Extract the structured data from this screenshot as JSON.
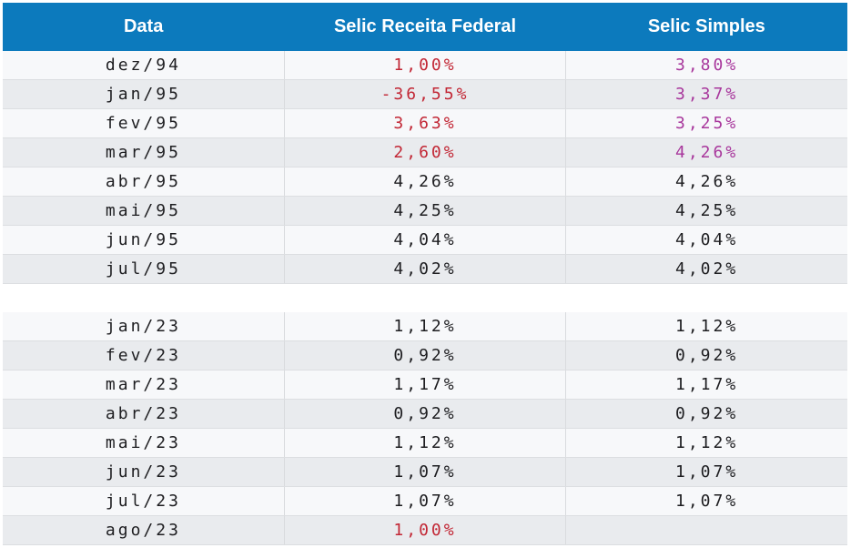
{
  "colors": {
    "header_bg": "#0c7abd",
    "header_text": "#ffffff",
    "row_light": "#f7f8fa",
    "row_gray": "#e9ebee",
    "row_border": "#dcdee1",
    "col_border": "#d9dbde",
    "cell_text": "#1d1d20",
    "red": "#c22735",
    "purple": "#a8379c"
  },
  "chart_data": {
    "type": "table",
    "columns": [
      "Data",
      "Selic Receita Federal",
      "Selic Simples"
    ],
    "sections": [
      {
        "rows": [
          {
            "data": "dez/94",
            "receita_federal": "1,00%",
            "receita_color": "red",
            "simples": "3,80%",
            "simples_color": "purple"
          },
          {
            "data": "jan/95",
            "receita_federal": "-36,55%",
            "receita_color": "red",
            "simples": "3,37%",
            "simples_color": "purple"
          },
          {
            "data": "fev/95",
            "receita_federal": "3,63%",
            "receita_color": "red",
            "simples": "3,25%",
            "simples_color": "purple"
          },
          {
            "data": "mar/95",
            "receita_federal": "2,60%",
            "receita_color": "red",
            "simples": "4,26%",
            "simples_color": "purple"
          },
          {
            "data": "abr/95",
            "receita_federal": "4,26%",
            "receita_color": "default",
            "simples": "4,26%",
            "simples_color": "default"
          },
          {
            "data": "mai/95",
            "receita_federal": "4,25%",
            "receita_color": "default",
            "simples": "4,25%",
            "simples_color": "default"
          },
          {
            "data": "jun/95",
            "receita_federal": "4,04%",
            "receita_color": "default",
            "simples": "4,04%",
            "simples_color": "default"
          },
          {
            "data": "jul/95",
            "receita_federal": "4,02%",
            "receita_color": "default",
            "simples": "4,02%",
            "simples_color": "default"
          }
        ]
      },
      {
        "rows": [
          {
            "data": "jan/23",
            "receita_federal": "1,12%",
            "receita_color": "default",
            "simples": "1,12%",
            "simples_color": "default"
          },
          {
            "data": "fev/23",
            "receita_federal": "0,92%",
            "receita_color": "default",
            "simples": "0,92%",
            "simples_color": "default"
          },
          {
            "data": "mar/23",
            "receita_federal": "1,17%",
            "receita_color": "default",
            "simples": "1,17%",
            "simples_color": "default"
          },
          {
            "data": "abr/23",
            "receita_federal": "0,92%",
            "receita_color": "default",
            "simples": "0,92%",
            "simples_color": "default"
          },
          {
            "data": "mai/23",
            "receita_federal": "1,12%",
            "receita_color": "default",
            "simples": "1,12%",
            "simples_color": "default"
          },
          {
            "data": "jun/23",
            "receita_federal": "1,07%",
            "receita_color": "default",
            "simples": "1,07%",
            "simples_color": "default"
          },
          {
            "data": "jul/23",
            "receita_federal": "1,07%",
            "receita_color": "default",
            "simples": "1,07%",
            "simples_color": "default"
          },
          {
            "data": "ago/23",
            "receita_federal": "1,00%",
            "receita_color": "red",
            "simples": "",
            "simples_color": "default"
          }
        ]
      }
    ]
  }
}
